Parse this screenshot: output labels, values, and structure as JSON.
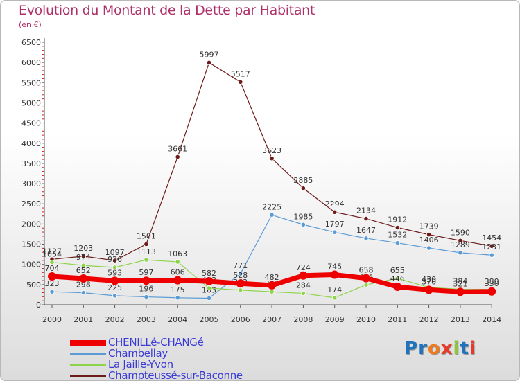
{
  "title": "Evolution du Montant de la Dette par Habitant",
  "unit": "(en €)",
  "logo": {
    "letters": [
      "P",
      "r",
      "o",
      "x",
      "i",
      "t",
      "i"
    ],
    "colors": [
      "#1e73be",
      "#1e73be",
      "#f07b1d",
      "#e83a2a",
      "#8cc63f",
      "#1e73be",
      "#e83a2a"
    ]
  },
  "chart_data": {
    "type": "line",
    "x": [
      "2000",
      "2001",
      "2002",
      "2003",
      "2004",
      "2005",
      "2006",
      "2007",
      "2008",
      "2009",
      "2010",
      "2011",
      "2012",
      "2013",
      "2014"
    ],
    "ylim": [
      0,
      6500
    ],
    "yticks": [
      0,
      500,
      1000,
      1500,
      2000,
      2500,
      3000,
      3500,
      4000,
      4500,
      5000,
      5500,
      6000,
      6500
    ],
    "grid": false,
    "legend_position": "bottom-left",
    "series": [
      {
        "name": "Champteussé-sur-Baconne",
        "color": "#6e1a1a",
        "width": 1.2,
        "values": [
          1127,
          1203,
          1097,
          1501,
          3661,
          5997,
          5517,
          3623,
          2885,
          2294,
          2134,
          1912,
          1739,
          1590,
          1454
        ],
        "labels": [
          "1127",
          "1203",
          "1097",
          "1501",
          "3661",
          "5997",
          "5517",
          "3623",
          "2885",
          "2294",
          "2134",
          "1912",
          "1739",
          "1590",
          "1454"
        ]
      },
      {
        "name": "Chambellay",
        "color": "#5b9bd5",
        "width": 1.2,
        "values": [
          323,
          298,
          225,
          196,
          175,
          163,
          771,
          2225,
          1985,
          1797,
          1647,
          1532,
          1406,
          1289,
          1231
        ],
        "labels": [
          "323",
          "298",
          "225",
          "196",
          "175",
          "163",
          "771",
          "2225",
          "1985",
          "1797",
          "1647",
          "1532",
          "1406",
          "1289",
          "1231"
        ]
      },
      {
        "name": "La Jaille-Yvon",
        "color": "#8ed44a",
        "width": 1.2,
        "values": [
          1054,
          974,
          926,
          1113,
          1063,
          413,
          362,
          322,
          284,
          174,
          494,
          655,
          430,
          384,
          380
        ],
        "labels": [
          "1054",
          "974",
          "926",
          "1113",
          "1063",
          "413",
          "362",
          "322",
          "284",
          "174",
          "494",
          "655",
          "430",
          "384",
          "380"
        ]
      },
      {
        "name": "CHENILLé-CHANGé",
        "color": "#ee0000",
        "width": 7,
        "values": [
          704,
          652,
          593,
          597,
          606,
          582,
          528,
          482,
          724,
          745,
          658,
          446,
          370,
          321,
          330
        ],
        "labels": [
          "704",
          "652",
          "593",
          "597",
          "606",
          "582",
          "528",
          "482",
          "724",
          "745",
          "658",
          "446",
          "370",
          "321",
          "330"
        ]
      }
    ],
    "legend_order": [
      "CHENILLé-CHANGé",
      "Chambellay",
      "La Jaille-Yvon",
      "Champteussé-sur-Baconne"
    ]
  }
}
